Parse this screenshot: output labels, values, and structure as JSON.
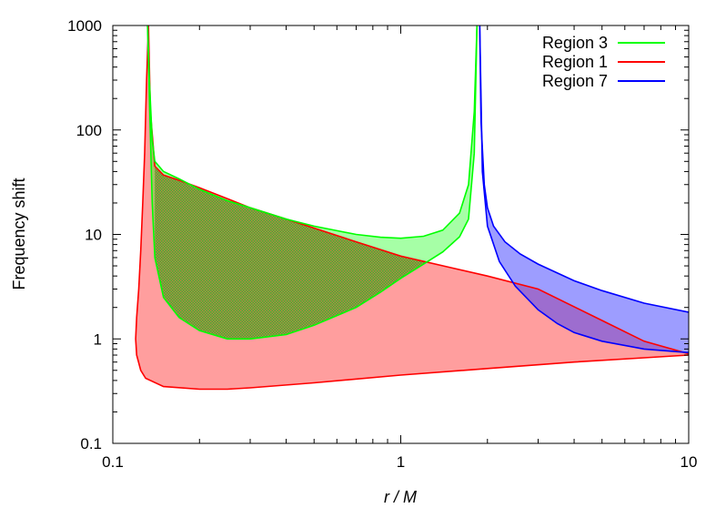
{
  "chart_data": {
    "type": "area",
    "title": "",
    "xlabel": "r / M",
    "ylabel": "Frequency shift",
    "xscale": "log",
    "yscale": "log",
    "xlim": [
      0.1,
      10
    ],
    "ylim": [
      0.1,
      1000
    ],
    "x_ticks": [
      "0.1",
      "1",
      "10"
    ],
    "y_ticks": [
      "0.1",
      "1",
      "10",
      "100",
      "1000"
    ],
    "grid": false,
    "legend_position": "top-right",
    "series": [
      {
        "name": "Region 3",
        "color": "#00ff00",
        "fill": "rgba(0,255,0,0.35)",
        "hatched_overlap": true,
        "upper": {
          "x": [
            0.132,
            0.134,
            0.137,
            0.14,
            0.15,
            0.17,
            0.2,
            0.25,
            0.3,
            0.4,
            0.5,
            0.7,
            0.85,
            1.0,
            1.2,
            1.4,
            1.6,
            1.72,
            1.8,
            1.84
          ],
          "y": [
            1000,
            300,
            80,
            50,
            40,
            34,
            27,
            21,
            18,
            14,
            12,
            10,
            9.4,
            9.2,
            9.6,
            11,
            16,
            30,
            150,
            1000
          ]
        },
        "lower": {
          "x": [
            0.132,
            0.134,
            0.137,
            0.14,
            0.15,
            0.17,
            0.2,
            0.25,
            0.3,
            0.4,
            0.5,
            0.7,
            0.85,
            1.0,
            1.2,
            1.4,
            1.6,
            1.72,
            1.8,
            1.84
          ],
          "y": [
            1000,
            200,
            20,
            6.0,
            2.5,
            1.6,
            1.2,
            1.0,
            1.0,
            1.1,
            1.35,
            2.0,
            2.8,
            3.8,
            5.2,
            6.8,
            9.5,
            14,
            60,
            1000
          ]
        }
      },
      {
        "name": "Region 1",
        "color": "#ff0000",
        "fill": "rgba(255,0,0,0.38)",
        "upper": {
          "x": [
            0.133,
            0.135,
            0.14,
            0.15,
            0.17,
            0.2,
            0.25,
            0.3,
            0.4,
            0.5,
            0.7,
            1.0,
            1.5,
            2.0,
            3.0,
            5.0,
            7.0,
            10.0
          ],
          "y": [
            1000,
            150,
            45,
            37,
            33,
            28,
            22,
            18,
            14,
            11.5,
            8.5,
            6.2,
            4.8,
            4.0,
            3.0,
            1.5,
            0.95,
            0.72
          ]
        },
        "lower": {
          "x": [
            0.133,
            0.131,
            0.129,
            0.127,
            0.125,
            0.123,
            0.121,
            0.12,
            0.121,
            0.125,
            0.13,
            0.15,
            0.2,
            0.25,
            0.3,
            0.5,
            1.0,
            2.0,
            4.0,
            7.0,
            10.0
          ],
          "y": [
            1000,
            300,
            60,
            20,
            7,
            3,
            1.6,
            1.0,
            0.7,
            0.5,
            0.42,
            0.35,
            0.33,
            0.33,
            0.34,
            0.38,
            0.45,
            0.52,
            0.6,
            0.66,
            0.7
          ]
        }
      },
      {
        "name": "Region 7",
        "color": "#0000ff",
        "fill": "rgba(60,60,255,0.5)",
        "upper": {
          "x": [
            1.88,
            1.9,
            1.95,
            2.0,
            2.1,
            2.3,
            2.6,
            3.0,
            4.0,
            5.0,
            7.0,
            10.0
          ],
          "y": [
            1000,
            120,
            30,
            18,
            12,
            8.5,
            6.5,
            5.2,
            3.6,
            2.9,
            2.2,
            1.8
          ]
        },
        "lower": {
          "x": [
            1.88,
            1.92,
            2.0,
            2.2,
            2.5,
            3.0,
            3.5,
            4.0,
            5.0,
            7.0,
            10.0
          ],
          "y": [
            1000,
            40,
            12,
            5.5,
            3.2,
            1.9,
            1.4,
            1.15,
            0.95,
            0.8,
            0.74
          ]
        }
      }
    ]
  }
}
